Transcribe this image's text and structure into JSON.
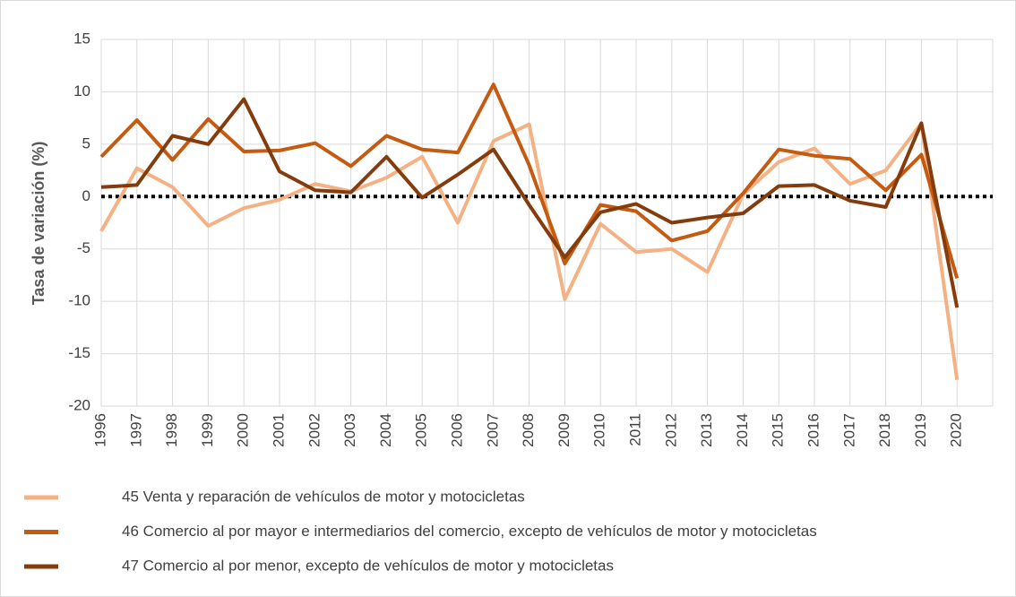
{
  "chart_data": {
    "type": "line",
    "y_label": "Tasa de variación (%)",
    "categories": [
      "1996",
      "1997",
      "1998",
      "1999",
      "2000",
      "2001",
      "2002",
      "2003",
      "2004",
      "2005",
      "2006",
      "2007",
      "2008",
      "2009",
      "2010",
      "2011",
      "2012",
      "2013",
      "2014",
      "2015",
      "2016",
      "2017",
      "2018",
      "2019",
      "2020"
    ],
    "series": [
      {
        "name": "45 Venta y reparación de vehículos de motor y motocicletas",
        "color": "#f4b183",
        "values": [
          -3.3,
          2.7,
          0.9,
          -2.8,
          -1.1,
          -0.3,
          1.2,
          0.5,
          1.8,
          3.8,
          -2.5,
          5.3,
          6.9,
          -9.8,
          -2.6,
          -5.3,
          -5.0,
          -7.2,
          0.2,
          3.3,
          4.6,
          1.2,
          2.5,
          7.0,
          -17.5
        ]
      },
      {
        "name": "46 Comercio al por mayor e intermediarios del comercio, excepto de vehículos de motor y motocicletas",
        "color": "#c55a11",
        "values": [
          3.8,
          7.3,
          3.5,
          7.4,
          4.3,
          4.4,
          5.1,
          2.9,
          5.8,
          4.5,
          4.2,
          10.7,
          3.0,
          -6.4,
          -0.8,
          -1.4,
          -4.2,
          -3.3,
          0.3,
          4.5,
          3.9,
          3.6,
          0.6,
          4.0,
          -7.8
        ]
      },
      {
        "name": "47 Comercio al por menor, excepto de vehículos de motor y motocicletas",
        "color": "#843c0c",
        "values": [
          0.9,
          1.1,
          5.8,
          5.0,
          9.3,
          2.4,
          0.6,
          0.4,
          3.8,
          -0.1,
          2.1,
          4.5,
          -0.8,
          -5.8,
          -1.5,
          -0.7,
          -2.5,
          -2.0,
          -1.6,
          1.0,
          1.1,
          -0.4,
          -1.0,
          7.0,
          -10.6
        ]
      }
    ],
    "ylim": [
      -20,
      15
    ],
    "yticks": [
      15,
      10,
      5,
      0,
      -5,
      -10,
      -15,
      -20
    ],
    "grid": true,
    "zero_line": true,
    "legend": "bottom"
  }
}
